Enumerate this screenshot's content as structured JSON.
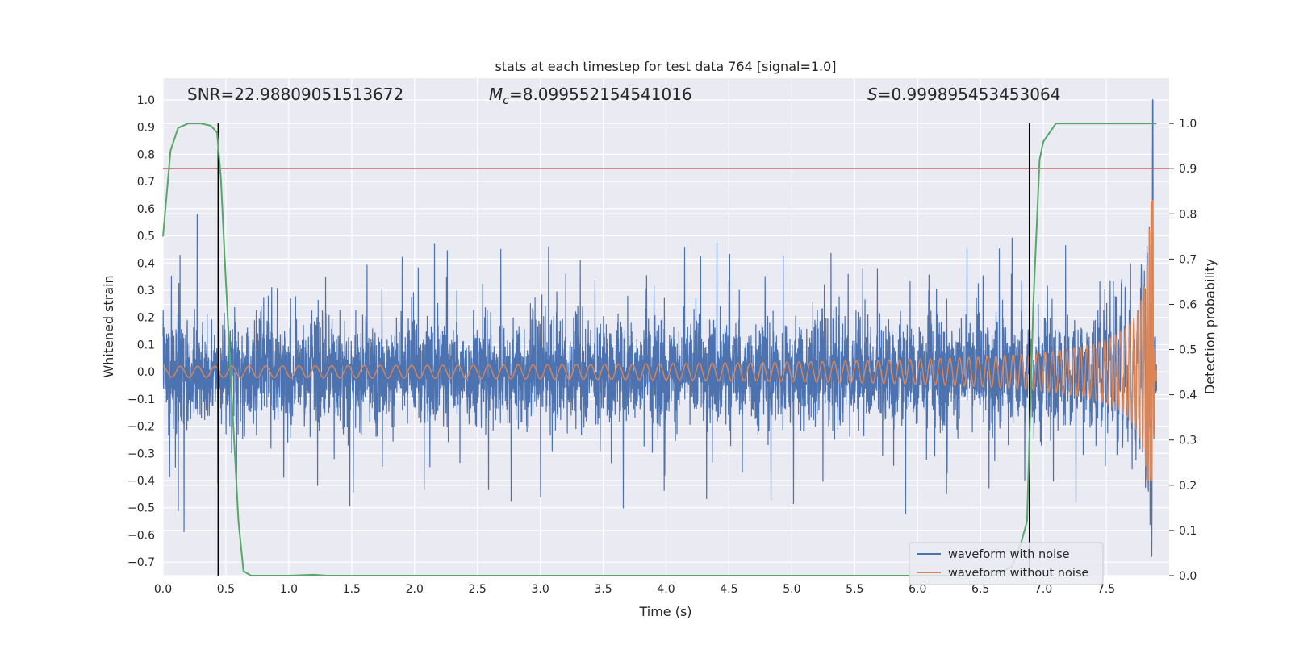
{
  "chart_data": {
    "type": "line",
    "title": "stats at each timestep for test data 764 [signal=1.0]",
    "xlabel": "Time (s)",
    "ylabel": "Whitened strain",
    "y2label": "Detection probability",
    "xlim": [
      0.0,
      8.0
    ],
    "ylim": [
      -0.75,
      1.08
    ],
    "y2lim": [
      -0.0,
      1.1
    ],
    "x_ticks": [
      "0.0",
      "0.5",
      "1.0",
      "1.5",
      "2.0",
      "2.5",
      "3.0",
      "3.5",
      "4.0",
      "4.5",
      "5.0",
      "5.5",
      "6.0",
      "6.5",
      "7.0",
      "7.5"
    ],
    "y_ticks": [
      "1.0",
      "0.9",
      "0.8",
      "0.7",
      "0.6",
      "0.5",
      "0.4",
      "0.3",
      "0.2",
      "0.1",
      "0.0",
      "−0.1",
      "−0.2",
      "−0.3",
      "−0.4",
      "−0.5",
      "−0.6",
      "−0.7"
    ],
    "y2_ticks": [
      "1.0",
      "0.9",
      "0.8",
      "0.7",
      "0.6",
      "0.5",
      "0.4",
      "0.3",
      "0.2",
      "0.1",
      "0.0"
    ],
    "annotations": {
      "snr": "SNR=22.98809051513672",
      "mc_symbol": "M",
      "mc_sub": "c",
      "mc_value": "=8.099552154541016",
      "s_symbol": "S",
      "s_value": "=0.999895453453064"
    },
    "threshold": 0.9,
    "vertical_lines": [
      0.44,
      6.89
    ],
    "legend_position": "lower-right",
    "colors": {
      "noise": "#4c72b0",
      "clean": "#dd8452",
      "probability": "#55a868",
      "threshold": "#c44e52",
      "vline": "#000000",
      "plot_bg": "#eaeaf2",
      "grid": "#ffffff"
    },
    "series": [
      {
        "name": "waveform with noise",
        "axis": "left",
        "x_range": [
          0.0,
          7.9
        ],
        "typical_amplitude": [
          -0.3,
          0.3
        ],
        "peak": [
          7.87,
          1.0
        ]
      },
      {
        "name": "waveform without noise",
        "axis": "left",
        "chirp": {
          "x_range": [
            0.0,
            7.9
          ],
          "start_amplitude": 0.02,
          "peak_amplitude": 0.63,
          "peak_time": 7.87,
          "min_value": -0.4
        }
      },
      {
        "name": "detection probability",
        "axis": "right",
        "x": [
          0.0,
          0.06,
          0.12,
          0.2,
          0.3,
          0.38,
          0.43,
          0.46,
          0.5,
          0.55,
          0.6,
          0.64,
          0.7,
          0.8,
          1.0,
          1.2,
          1.3,
          1.5,
          2.0,
          3.0,
          4.0,
          5.0,
          6.0,
          6.6,
          6.75,
          6.82,
          6.87,
          6.92,
          6.97,
          7.0,
          7.1,
          7.3,
          7.6,
          7.9
        ],
        "y": [
          0.75,
          0.94,
          0.99,
          1.0,
          1.0,
          0.995,
          0.98,
          0.88,
          0.65,
          0.38,
          0.12,
          0.01,
          0.0,
          0.0,
          0.0,
          0.002,
          0.0,
          0.0,
          0.0,
          0.0,
          0.0,
          0.0,
          0.0,
          0.0,
          0.02,
          0.07,
          0.12,
          0.6,
          0.92,
          0.96,
          1.0,
          1.0,
          1.0,
          1.0
        ]
      }
    ]
  }
}
